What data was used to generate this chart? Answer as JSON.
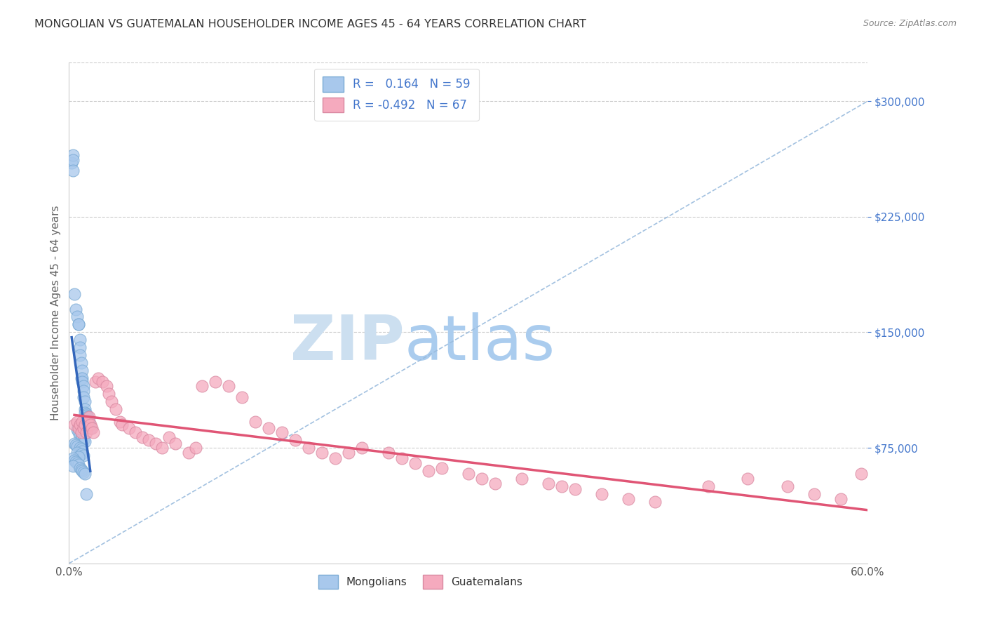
{
  "title": "MONGOLIAN VS GUATEMALAN HOUSEHOLDER INCOME AGES 45 - 64 YEARS CORRELATION CHART",
  "source": "Source: ZipAtlas.com",
  "ylabel": "Householder Income Ages 45 - 64 years",
  "ytick_values": [
    75000,
    150000,
    225000,
    300000
  ],
  "ymin": 0,
  "ymax": 325000,
  "xmin": 0.0,
  "xmax": 0.6,
  "mongolian_R": 0.164,
  "mongolian_N": 59,
  "guatemalan_R": -0.492,
  "guatemalan_N": 67,
  "mongolian_color": "#A8C8EC",
  "mongolian_edge": "#7AAAD4",
  "guatemalan_color": "#F5AABE",
  "guatemalan_edge": "#D888A0",
  "trend_mongolian_color": "#3366BB",
  "trend_guatemalan_color": "#E05575",
  "diagonal_color": "#99BBDD",
  "watermark_zip_color": "#CCDFF0",
  "watermark_atlas_color": "#AACCEE",
  "legend_color": "#4477CC",
  "mongolian_x": [
    0.002,
    0.003,
    0.003,
    0.003,
    0.004,
    0.005,
    0.006,
    0.007,
    0.007,
    0.008,
    0.008,
    0.008,
    0.009,
    0.009,
    0.01,
    0.01,
    0.01,
    0.011,
    0.011,
    0.011,
    0.012,
    0.012,
    0.012,
    0.013,
    0.013,
    0.014,
    0.014,
    0.015,
    0.015,
    0.016,
    0.006,
    0.007,
    0.008,
    0.009,
    0.01,
    0.011,
    0.012,
    0.004,
    0.005,
    0.006,
    0.008,
    0.009,
    0.01,
    0.006,
    0.009,
    0.011,
    0.007,
    0.003,
    0.004,
    0.005,
    0.006,
    0.007,
    0.003,
    0.008,
    0.009,
    0.01,
    0.011,
    0.012,
    0.013
  ],
  "mongolian_y": [
    260000,
    265000,
    262000,
    255000,
    175000,
    165000,
    160000,
    155000,
    155000,
    145000,
    140000,
    135000,
    130000,
    120000,
    125000,
    120000,
    118000,
    115000,
    112000,
    108000,
    105000,
    100000,
    98000,
    97000,
    96000,
    94000,
    95000,
    92000,
    90000,
    88000,
    87000,
    85000,
    83000,
    82000,
    81000,
    80000,
    79000,
    78000,
    77000,
    76000,
    75000,
    74000,
    73000,
    72000,
    71000,
    70000,
    69000,
    68000,
    67000,
    66000,
    65000,
    64000,
    63000,
    62000,
    61000,
    60000,
    59000,
    58000,
    45000
  ],
  "guatemalan_x": [
    0.004,
    0.006,
    0.007,
    0.008,
    0.009,
    0.01,
    0.011,
    0.012,
    0.013,
    0.014,
    0.015,
    0.016,
    0.017,
    0.018,
    0.02,
    0.022,
    0.025,
    0.028,
    0.03,
    0.032,
    0.035,
    0.038,
    0.04,
    0.045,
    0.05,
    0.055,
    0.06,
    0.065,
    0.07,
    0.075,
    0.08,
    0.09,
    0.095,
    0.1,
    0.11,
    0.12,
    0.13,
    0.14,
    0.15,
    0.16,
    0.17,
    0.18,
    0.19,
    0.2,
    0.21,
    0.22,
    0.24,
    0.25,
    0.26,
    0.27,
    0.28,
    0.3,
    0.31,
    0.32,
    0.34,
    0.36,
    0.37,
    0.38,
    0.4,
    0.42,
    0.44,
    0.48,
    0.51,
    0.54,
    0.56,
    0.58,
    0.595
  ],
  "guatemalan_y": [
    90000,
    92000,
    88000,
    90000,
    85000,
    92000,
    88000,
    90000,
    85000,
    92000,
    95000,
    90000,
    88000,
    85000,
    118000,
    120000,
    118000,
    115000,
    110000,
    105000,
    100000,
    92000,
    90000,
    88000,
    85000,
    82000,
    80000,
    78000,
    75000,
    82000,
    78000,
    72000,
    75000,
    115000,
    118000,
    115000,
    108000,
    92000,
    88000,
    85000,
    80000,
    75000,
    72000,
    68000,
    72000,
    75000,
    72000,
    68000,
    65000,
    60000,
    62000,
    58000,
    55000,
    52000,
    55000,
    52000,
    50000,
    48000,
    45000,
    42000,
    40000,
    50000,
    55000,
    50000,
    45000,
    42000,
    58000
  ]
}
